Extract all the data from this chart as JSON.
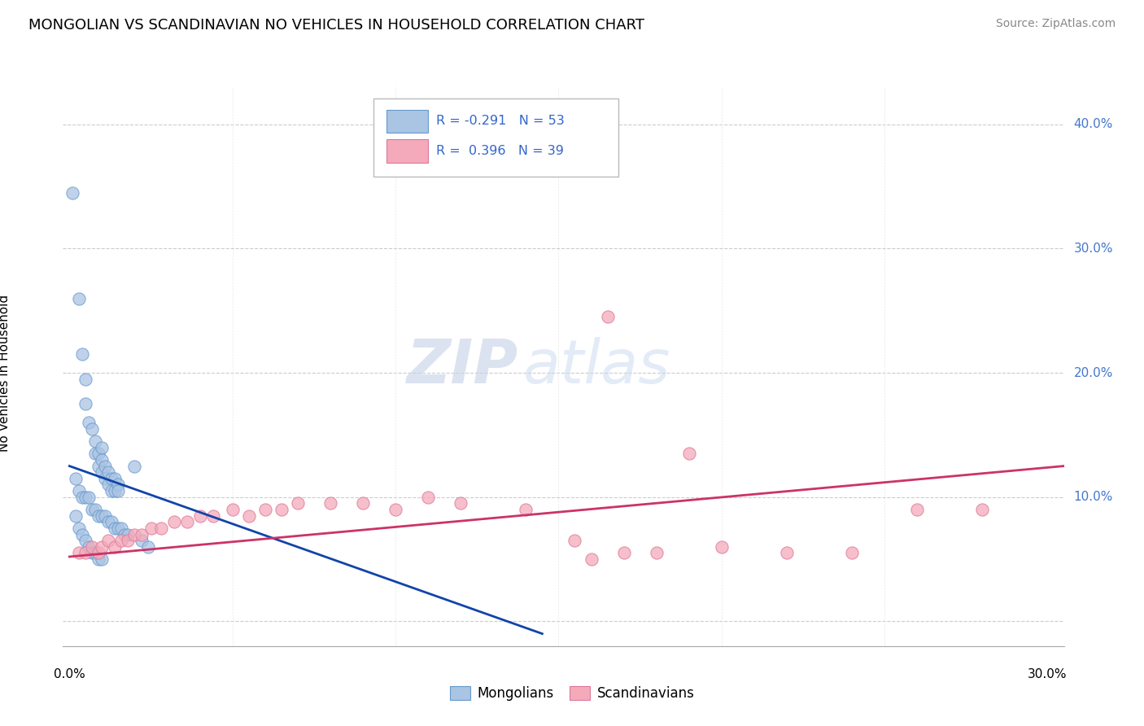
{
  "title": "MONGOLIAN VS SCANDINAVIAN NO VEHICLES IN HOUSEHOLD CORRELATION CHART",
  "source": "Source: ZipAtlas.com",
  "ylabel": "No Vehicles in Household",
  "xlim": [
    -0.002,
    0.305
  ],
  "ylim": [
    -0.02,
    0.43
  ],
  "R_mongolian": -0.291,
  "N_mongolian": 53,
  "R_scandinavian": 0.396,
  "N_scandinavian": 39,
  "mongolian_color": "#aac4e4",
  "mongolian_edge": "#6699cc",
  "scandinavian_color": "#f4aaba",
  "scandinavian_edge": "#dd7799",
  "mongolian_line_color": "#1144aa",
  "scandinavian_line_color": "#cc3366",
  "mongolian_scatter": [
    [
      0.001,
      0.345
    ],
    [
      0.003,
      0.26
    ],
    [
      0.004,
      0.215
    ],
    [
      0.005,
      0.195
    ],
    [
      0.005,
      0.175
    ],
    [
      0.006,
      0.16
    ],
    [
      0.007,
      0.155
    ],
    [
      0.008,
      0.145
    ],
    [
      0.008,
      0.135
    ],
    [
      0.009,
      0.135
    ],
    [
      0.009,
      0.125
    ],
    [
      0.01,
      0.14
    ],
    [
      0.01,
      0.13
    ],
    [
      0.01,
      0.12
    ],
    [
      0.011,
      0.125
    ],
    [
      0.011,
      0.115
    ],
    [
      0.012,
      0.12
    ],
    [
      0.012,
      0.11
    ],
    [
      0.013,
      0.115
    ],
    [
      0.013,
      0.105
    ],
    [
      0.014,
      0.115
    ],
    [
      0.014,
      0.105
    ],
    [
      0.015,
      0.11
    ],
    [
      0.015,
      0.105
    ],
    [
      0.002,
      0.115
    ],
    [
      0.003,
      0.105
    ],
    [
      0.004,
      0.1
    ],
    [
      0.005,
      0.1
    ],
    [
      0.006,
      0.1
    ],
    [
      0.007,
      0.09
    ],
    [
      0.008,
      0.09
    ],
    [
      0.009,
      0.085
    ],
    [
      0.01,
      0.085
    ],
    [
      0.011,
      0.085
    ],
    [
      0.012,
      0.08
    ],
    [
      0.013,
      0.08
    ],
    [
      0.014,
      0.075
    ],
    [
      0.015,
      0.075
    ],
    [
      0.016,
      0.075
    ],
    [
      0.017,
      0.07
    ],
    [
      0.018,
      0.07
    ],
    [
      0.02,
      0.125
    ],
    [
      0.022,
      0.065
    ],
    [
      0.024,
      0.06
    ],
    [
      0.002,
      0.085
    ],
    [
      0.003,
      0.075
    ],
    [
      0.004,
      0.07
    ],
    [
      0.005,
      0.065
    ],
    [
      0.006,
      0.06
    ],
    [
      0.007,
      0.055
    ],
    [
      0.008,
      0.055
    ],
    [
      0.009,
      0.05
    ],
    [
      0.01,
      0.05
    ]
  ],
  "scandinavian_scatter": [
    [
      0.003,
      0.055
    ],
    [
      0.005,
      0.055
    ],
    [
      0.007,
      0.06
    ],
    [
      0.009,
      0.055
    ],
    [
      0.01,
      0.06
    ],
    [
      0.012,
      0.065
    ],
    [
      0.014,
      0.06
    ],
    [
      0.016,
      0.065
    ],
    [
      0.018,
      0.065
    ],
    [
      0.02,
      0.07
    ],
    [
      0.022,
      0.07
    ],
    [
      0.025,
      0.075
    ],
    [
      0.028,
      0.075
    ],
    [
      0.032,
      0.08
    ],
    [
      0.036,
      0.08
    ],
    [
      0.04,
      0.085
    ],
    [
      0.044,
      0.085
    ],
    [
      0.05,
      0.09
    ],
    [
      0.055,
      0.085
    ],
    [
      0.06,
      0.09
    ],
    [
      0.065,
      0.09
    ],
    [
      0.07,
      0.095
    ],
    [
      0.08,
      0.095
    ],
    [
      0.09,
      0.095
    ],
    [
      0.1,
      0.09
    ],
    [
      0.11,
      0.1
    ],
    [
      0.12,
      0.095
    ],
    [
      0.14,
      0.09
    ],
    [
      0.155,
      0.065
    ],
    [
      0.16,
      0.05
    ],
    [
      0.17,
      0.055
    ],
    [
      0.18,
      0.055
    ],
    [
      0.2,
      0.06
    ],
    [
      0.22,
      0.055
    ],
    [
      0.24,
      0.055
    ],
    [
      0.165,
      0.245
    ],
    [
      0.19,
      0.135
    ],
    [
      0.26,
      0.09
    ],
    [
      0.28,
      0.09
    ]
  ],
  "mong_trend_x": [
    0.0,
    0.145
  ],
  "mong_trend_y": [
    0.125,
    -0.01
  ],
  "scand_trend_x": [
    0.0,
    0.305
  ],
  "scand_trend_y": [
    0.052,
    0.125
  ],
  "watermark_zip": "ZIP",
  "watermark_atlas": "atlas",
  "background_color": "#ffffff",
  "grid_color": "#cccccc",
  "ytick_vals": [
    0.0,
    0.1,
    0.2,
    0.3,
    0.4
  ],
  "ytick_labels": [
    "",
    "10.0%",
    "20.0%",
    "30.0%",
    "40.0%"
  ],
  "xtick_vals": [
    0.0,
    0.3
  ],
  "xtick_labels": [
    "0.0%",
    "30.0%"
  ],
  "marker_size": 120
}
